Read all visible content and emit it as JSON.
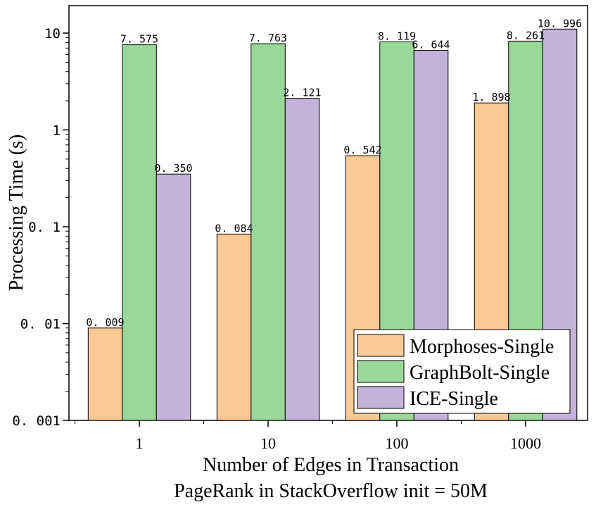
{
  "chart_data": {
    "type": "bar",
    "title": "",
    "xlabel": "Number of Edges in Transaction",
    "subtitle": "PageRank in StackOverflow init = 50M",
    "ylabel": "Processing Time (s)",
    "yscale": "log",
    "ylim": [
      0.001,
      15
    ],
    "yticks": [
      {
        "value": 10,
        "label": "10"
      },
      {
        "value": 1,
        "label": "1"
      },
      {
        "value": 0.1,
        "label": "0. 1"
      },
      {
        "value": 0.01,
        "label": "0. 01"
      },
      {
        "value": 0.001,
        "label": "0. 001"
      }
    ],
    "categories": [
      "1",
      "10",
      "100",
      "1000"
    ],
    "series": [
      {
        "name": "Morphoses-Single",
        "color": "#fbc996",
        "values": [
          0.009,
          0.084,
          0.542,
          1.898
        ],
        "labels": [
          "0. 009",
          "0. 084",
          "0. 542",
          "1. 898"
        ]
      },
      {
        "name": "GraphBolt-Single",
        "color": "#9ad899",
        "values": [
          7.575,
          7.763,
          8.119,
          8.261
        ],
        "labels": [
          "7. 575",
          "7. 763",
          "8. 119",
          "8. 261"
        ]
      },
      {
        "name": "ICE-Single",
        "color": "#c3b3d9",
        "values": [
          0.35,
          2.121,
          6.644,
          10.996
        ],
        "labels": [
          "0. 350",
          "2. 121",
          "6. 644",
          "10. 996"
        ]
      }
    ],
    "legend_position": "bottom-right",
    "grid": false
  }
}
